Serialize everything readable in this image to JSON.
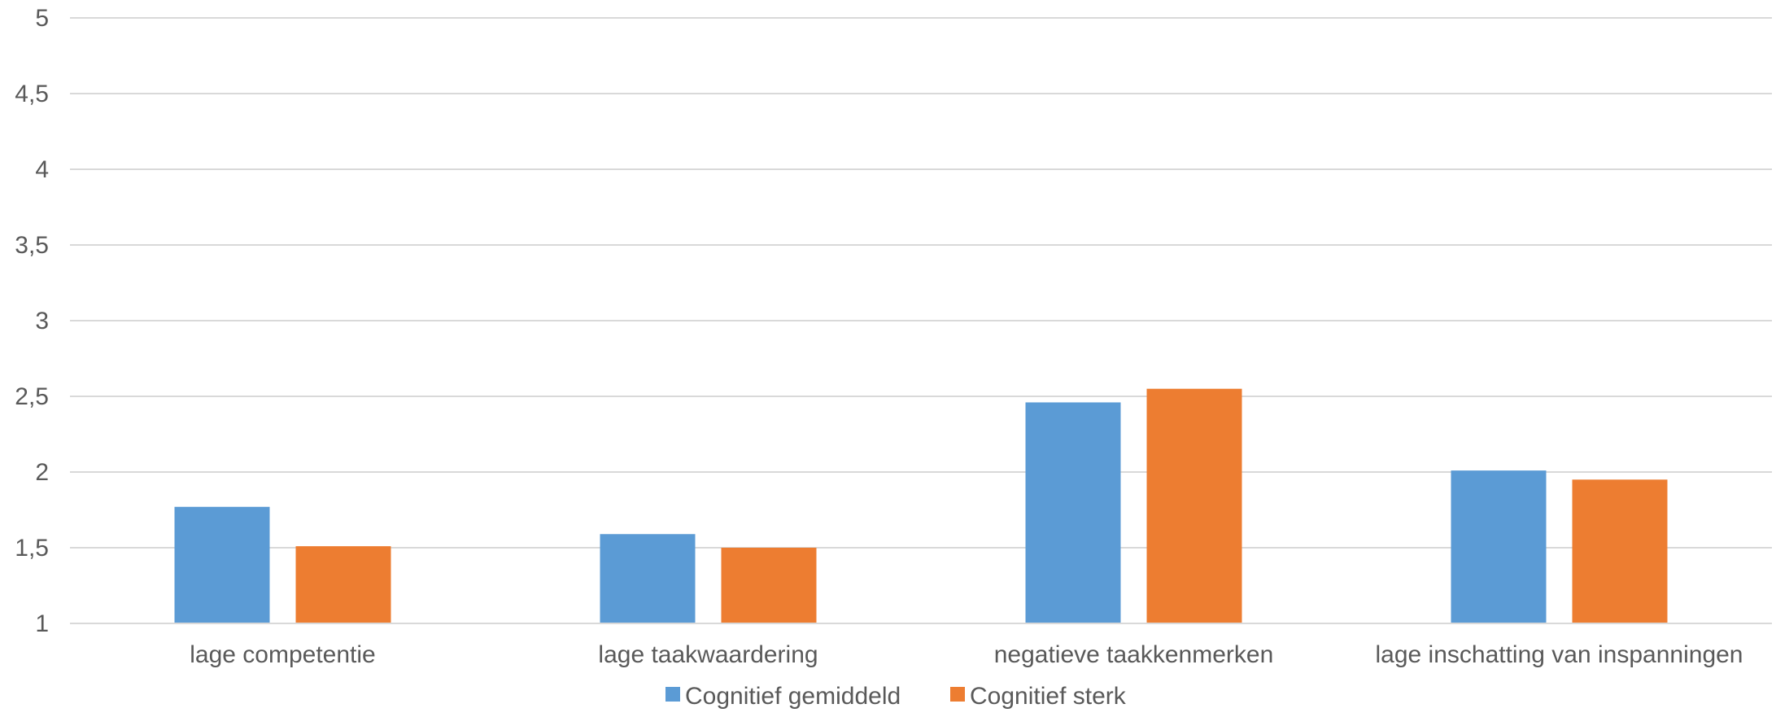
{
  "chart_data": {
    "type": "bar",
    "categories": [
      "lage competentie",
      "lage taakwaardering",
      "negatieve taakkenmerken",
      "lage inschatting van inspanningen"
    ],
    "series": [
      {
        "name": "Cognitief gemiddeld",
        "values": [
          1.77,
          1.59,
          2.46,
          2.01
        ],
        "color": "#5b9bd5"
      },
      {
        "name": "Cognitief sterk",
        "values": [
          1.51,
          1.5,
          2.55,
          1.95
        ],
        "color": "#ed7d31"
      }
    ],
    "ylim": [
      1,
      5
    ],
    "yticks": [
      "1",
      "1,5",
      "2",
      "2,5",
      "3",
      "3,5",
      "4",
      "4,5",
      "5"
    ],
    "ytick_values": [
      1,
      1.5,
      2,
      2.5,
      3,
      3.5,
      4,
      4.5,
      5
    ],
    "grid": true,
    "legend": "bottom-center",
    "title": "",
    "xlabel": "",
    "ylabel": ""
  }
}
